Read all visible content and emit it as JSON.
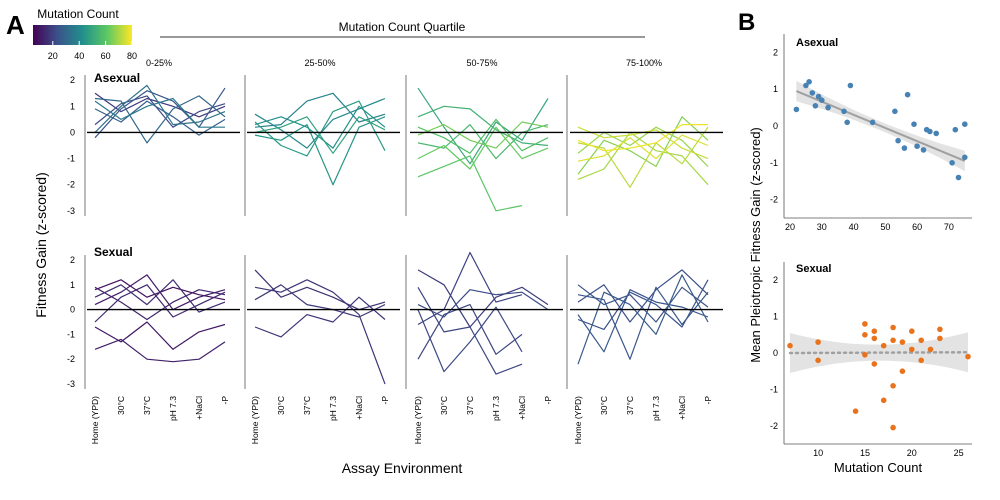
{
  "panel_a": {
    "letter": "A",
    "colorbar": {
      "title": "Mutation Count",
      "ticks": [
        "20",
        "40",
        "60",
        "80"
      ],
      "tick_values": [
        20,
        40,
        60,
        80
      ],
      "range": [
        5,
        80
      ]
    },
    "quartile_header": "Mutation Count Quartile",
    "quartiles": [
      "0-25%",
      "25-50%",
      "50-75%",
      "75-100%"
    ],
    "row_labels": [
      "Asexual",
      "Sexual"
    ],
    "ylabel": "Fitness Gain (z-scored)",
    "xlabel": "Assay Environment",
    "environments": [
      "Home (YPD)",
      "30°C",
      "37°C",
      "pH 7.3",
      "+NaCl",
      "-P"
    ],
    "y_ticks_asexual": [
      "2",
      "1",
      "0",
      "-1",
      "-2",
      "-3"
    ],
    "y_ticks_sexual": [
      "2",
      "1",
      "0",
      "-1",
      "-2",
      "-3"
    ]
  },
  "panel_b": {
    "letter": "B",
    "ylabel": "Mean Pleiotropic Fitness Gain (z-scored)",
    "xlabel": "Mutation Count",
    "asexual": {
      "label": "Asexual",
      "x_ticks": [
        "20",
        "30",
        "40",
        "50",
        "60",
        "70"
      ],
      "y_ticks": [
        "2",
        "1",
        "0",
        "-1",
        "-2"
      ],
      "color": "#4682b4"
    },
    "sexual": {
      "label": "Sexual",
      "x_ticks": [
        "10",
        "15",
        "20",
        "25"
      ],
      "y_ticks": [
        "2",
        "1",
        "0",
        "-1",
        "-2"
      ],
      "color": "#e8731c"
    }
  },
  "chart_data": [
    {
      "type": "line",
      "title": "Panel A - Asexual",
      "xlabel": "Assay Environment",
      "ylabel": "Fitness Gain (z-scored)",
      "categories": [
        "Home (YPD)",
        "30°C",
        "37°C",
        "pH 7.3",
        "+NaCl",
        "-P"
      ],
      "ylim": [
        -3.2,
        2.2
      ],
      "facets": [
        {
          "quartile": "0-25%",
          "series": [
            {
              "mc": 18,
              "values": [
                1.5,
                0.8,
                1.3,
                1.0,
                0.6,
                1.0
              ]
            },
            {
              "mc": 22,
              "values": [
                0.3,
                1.1,
                1.4,
                0.2,
                0.8,
                1.1
              ]
            },
            {
              "mc": 25,
              "values": [
                -0.2,
                0.9,
                1.6,
                1.2,
                0.2,
                1.7
              ]
            },
            {
              "mc": 28,
              "values": [
                0.9,
                0.4,
                1.2,
                0.6,
                -0.1,
                0.5
              ]
            },
            {
              "mc": 30,
              "values": [
                1.3,
                1.2,
                -0.4,
                0.9,
                1.4,
                0.6
              ]
            },
            {
              "mc": 33,
              "values": [
                0.0,
                1.0,
                1.8,
                0.3,
                0.4,
                0.8
              ]
            },
            {
              "mc": 35,
              "values": [
                1.2,
                0.5,
                1.0,
                1.3,
                0.2,
                0.2
              ]
            }
          ]
        },
        {
          "quartile": "25-50%",
          "series": [
            {
              "mc": 38,
              "values": [
                0.2,
                0.3,
                1.2,
                1.5,
                0.4,
                0.7
              ]
            },
            {
              "mc": 40,
              "values": [
                0.7,
                0.1,
                -0.6,
                0.5,
                0.9,
                1.3
              ]
            },
            {
              "mc": 42,
              "values": [
                0.3,
                0.6,
                0.2,
                -0.6,
                1.0,
                0.2
              ]
            },
            {
              "mc": 44,
              "values": [
                -0.1,
                -0.3,
                0.3,
                -2.0,
                0.2,
                0.6
              ]
            },
            {
              "mc": 46,
              "values": [
                0.4,
                -0.5,
                -0.9,
                0.8,
                1.2,
                -0.7
              ]
            },
            {
              "mc": 48,
              "values": [
                0.0,
                0.2,
                0.6,
                -0.8,
                0.6,
                0.1
              ]
            }
          ]
        },
        {
          "quartile": "50-75%",
          "series": [
            {
              "mc": 50,
              "values": [
                1.7,
                0.2,
                -1.2,
                0.4,
                -0.3,
                1.3
              ]
            },
            {
              "mc": 53,
              "values": [
                0.6,
                1.0,
                0.9,
                0.1,
                -0.4,
                -0.5
              ]
            },
            {
              "mc": 56,
              "values": [
                -0.4,
                -0.6,
                0.3,
                -1.0,
                0.0,
                0.3
              ]
            },
            {
              "mc": 58,
              "values": [
                0.2,
                -0.2,
                -0.8,
                0.5,
                -0.7,
                -0.2
              ]
            },
            {
              "mc": 60,
              "values": [
                -1.7,
                -1.3,
                -0.9,
                -3.0,
                -2.8,
                null
              ]
            },
            {
              "mc": 62,
              "values": [
                -1.0,
                -0.5,
                -1.4,
                0.2,
                -1.0,
                -0.6
              ]
            },
            {
              "mc": 64,
              "values": [
                -0.1,
                0.3,
                -0.3,
                -0.6,
                0.4,
                0.2
              ]
            }
          ]
        },
        {
          "quartile": "75-100%",
          "series": [
            {
              "mc": 66,
              "values": [
                -1.6,
                -0.3,
                -0.7,
                -1.3,
                0.6,
                -0.3
              ]
            },
            {
              "mc": 68,
              "values": [
                -0.8,
                0.0,
                -0.5,
                0.2,
                -0.3,
                -1.3
              ]
            },
            {
              "mc": 70,
              "values": [
                -1.8,
                -1.4,
                0.0,
                -0.7,
                -0.9,
                -2.0
              ]
            },
            {
              "mc": 72,
              "values": [
                -0.4,
                -0.6,
                -2.1,
                -0.4,
                -1.2,
                0.2
              ]
            },
            {
              "mc": 74,
              "values": [
                0.2,
                -0.2,
                -0.1,
                0.1,
                -0.6,
                -1.0
              ]
            },
            {
              "mc": 76,
              "values": [
                -1.1,
                -0.9,
                -0.2,
                -1.0,
                -0.1,
                -0.5
              ]
            },
            {
              "mc": 78,
              "values": [
                -0.3,
                -0.7,
                -0.6,
                -0.4,
                0.3,
                0.3
              ]
            }
          ]
        }
      ]
    },
    {
      "type": "line",
      "title": "Panel A - Sexual",
      "xlabel": "Assay Environment",
      "ylabel": "Fitness Gain (z-scored)",
      "categories": [
        "Home (YPD)",
        "30°C",
        "37°C",
        "pH 7.3",
        "+NaCl",
        "-P"
      ],
      "ylim": [
        -3.2,
        2.2
      ],
      "facets": [
        {
          "quartile": "0-25%",
          "series": [
            {
              "mc": 8,
              "values": [
                0.8,
                1.2,
                0.5,
                0.9,
                0.6,
                0.4
              ]
            },
            {
              "mc": 10,
              "values": [
                -0.7,
                -1.3,
                -0.5,
                -1.6,
                -0.9,
                -0.6
              ]
            },
            {
              "mc": 11,
              "values": [
                0.2,
                0.7,
                1.4,
                0.0,
                0.5,
                0.8
              ]
            },
            {
              "mc": 12,
              "values": [
                -1.6,
                -1.2,
                -2.0,
                -2.1,
                -2.0,
                -1.3
              ]
            },
            {
              "mc": 13,
              "values": [
                0.9,
                0.3,
                -0.4,
                0.3,
                0.8,
                0.6
              ]
            },
            {
              "mc": 14,
              "values": [
                -0.5,
                0.5,
                1.0,
                -0.3,
                0.2,
                0.7
              ]
            },
            {
              "mc": 15,
              "values": [
                0.5,
                1.0,
                0.2,
                1.2,
                -0.1,
                0.3
              ]
            }
          ]
        },
        {
          "quartile": "25-50%",
          "series": [
            {
              "mc": 16,
              "values": [
                1.6,
                0.5,
                0.9,
                0.5,
                0.0,
                0.3
              ]
            },
            {
              "mc": 17,
              "values": [
                0.9,
                0.7,
                1.2,
                0.7,
                -0.2,
                -3.0
              ]
            },
            {
              "mc": 17,
              "values": [
                -0.7,
                -1.1,
                -0.2,
                -0.5,
                0.5,
                -0.4
              ]
            },
            {
              "mc": 18,
              "values": [
                0.4,
                1.0,
                0.2,
                0.0,
                -0.3,
                0.2
              ]
            }
          ]
        },
        {
          "quartile": "50-75%",
          "series": [
            {
              "mc": 19,
              "values": [
                1.6,
                1.0,
                -0.7,
                0.5,
                0.9,
                0.2
              ]
            },
            {
              "mc": 20,
              "values": [
                -0.6,
                0.0,
                2.3,
                0.3,
                0.6,
                null
              ]
            },
            {
              "mc": 21,
              "values": [
                0.9,
                -0.9,
                -0.7,
                -2.6,
                -2.2,
                null
              ]
            },
            {
              "mc": 21,
              "values": [
                -2.0,
                -0.2,
                0.2,
                -1.8,
                -1.0,
                null
              ]
            },
            {
              "mc": 22,
              "values": [
                0.2,
                -0.3,
                0.8,
                0.6,
                0.7,
                0.0
              ]
            },
            {
              "mc": 22,
              "values": [
                0.0,
                -2.5,
                -1.3,
                0.1,
                -1.7,
                null
              ]
            }
          ]
        },
        {
          "quartile": "75-100%",
          "series": [
            {
              "mc": 23,
              "values": [
                0.3,
                1.0,
                -0.5,
                0.8,
                1.6,
                0.6
              ]
            },
            {
              "mc": 24,
              "values": [
                -0.4,
                -0.8,
                0.7,
                0.2,
                -0.7,
                1.2
              ]
            },
            {
              "mc": 24,
              "values": [
                1.0,
                0.2,
                0.6,
                -0.5,
                0.9,
                0.1
              ]
            },
            {
              "mc": 25,
              "values": [
                -0.2,
                -1.7,
                0.8,
                0.3,
                0.1,
                -0.3
              ]
            },
            {
              "mc": 25,
              "values": [
                0.6,
                0.4,
                -2.0,
                0.9,
                -0.6,
                0.7
              ]
            },
            {
              "mc": 26,
              "values": [
                -2.2,
                0.7,
                0.2,
                -1.0,
                1.4,
                -0.5
              ]
            }
          ]
        }
      ]
    },
    {
      "type": "scatter",
      "title": "Panel B - Asexual",
      "xlabel": "Mutation Count",
      "ylabel": "Mean Pleiotropic Fitness Gain (z-scored)",
      "xlim": [
        20,
        76
      ],
      "ylim": [
        -2.5,
        2.5
      ],
      "x": [
        22,
        25,
        26,
        27,
        28,
        29,
        30,
        32,
        37,
        38,
        39,
        46,
        53,
        54,
        56,
        57,
        59,
        60,
        62,
        63,
        64,
        66,
        71,
        72,
        73,
        75,
        75
      ],
      "y": [
        0.45,
        1.1,
        1.2,
        0.9,
        0.55,
        0.8,
        0.7,
        0.5,
        0.4,
        0.1,
        1.1,
        0.1,
        0.4,
        -0.4,
        -0.6,
        0.85,
        0.05,
        -0.55,
        -0.65,
        -0.1,
        -0.15,
        -0.2,
        -1.0,
        -0.1,
        -1.4,
        -0.85,
        0.05
      ],
      "trend": {
        "x": [
          22,
          75
        ],
        "y": [
          0.95,
          -0.95
        ],
        "style": "solid",
        "color": "#a0a0a0"
      },
      "ci_band": true
    },
    {
      "type": "scatter",
      "title": "Panel B - Sexual",
      "xlabel": "Mutation Count",
      "ylabel": "Mean Pleiotropic Fitness Gain (z-scored)",
      "xlim": [
        7,
        26
      ],
      "ylim": [
        -2.5,
        2.5
      ],
      "x": [
        7,
        10,
        10,
        14,
        15,
        15,
        15,
        16,
        16,
        16,
        17,
        17,
        18,
        18,
        18,
        18,
        19,
        19,
        20,
        20,
        21,
        21,
        22,
        23,
        23,
        26
      ],
      "y": [
        0.2,
        0.3,
        -0.2,
        -1.6,
        0.8,
        0.5,
        -0.05,
        0.6,
        0.4,
        -0.3,
        -1.3,
        0.2,
        0.7,
        0.35,
        -0.9,
        -2.05,
        0.3,
        -0.5,
        0.1,
        0.6,
        -0.2,
        0.35,
        0.1,
        0.4,
        0.65,
        -0.1
      ],
      "trend": {
        "x": [
          7,
          26
        ],
        "y": [
          0.0,
          0.02
        ],
        "style": "dotted",
        "color": "#a0a0a0"
      },
      "ci_band": true
    }
  ]
}
